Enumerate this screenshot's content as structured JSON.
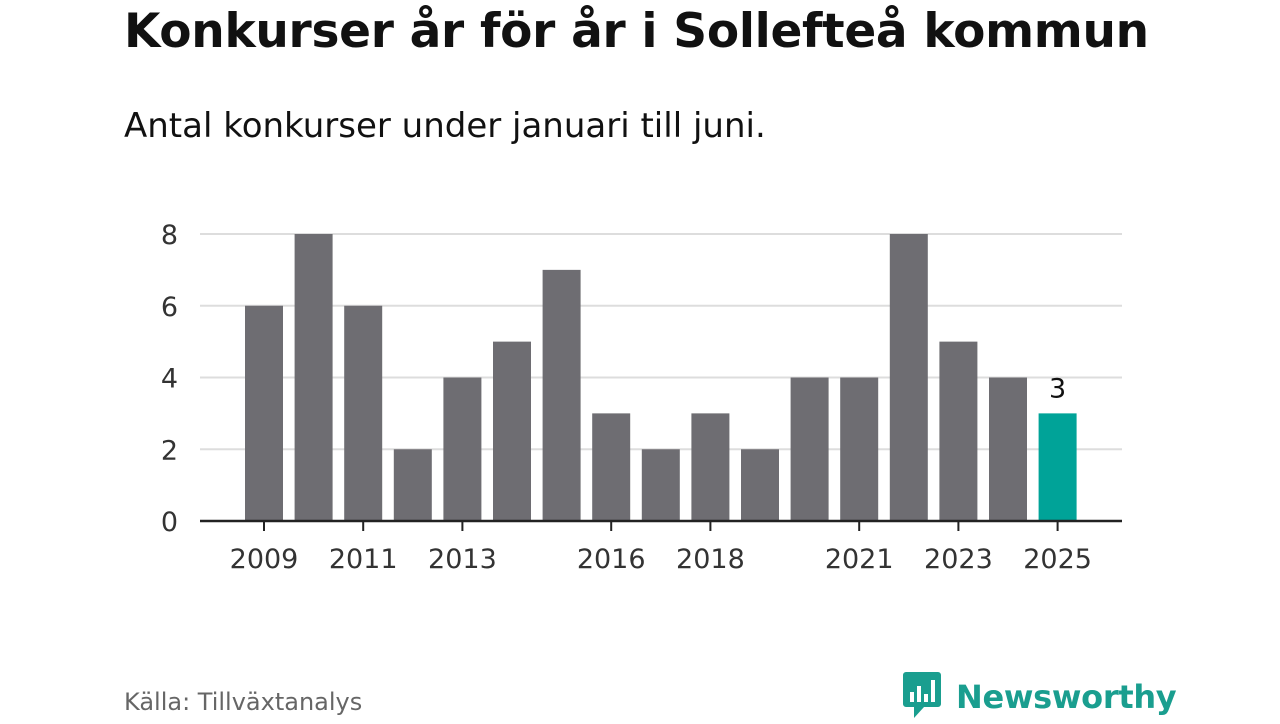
{
  "title": "Konkurser år för år i Sollefteå kommun",
  "subtitle": "Antal konkurser under januari till juni.",
  "source": "Källa: Tillväxtanalys",
  "brand": {
    "name": "Newsworthy",
    "icon": "newsworthy-logo-icon",
    "color": "#1a9e8f"
  },
  "colors": {
    "bar": "#6e6d72",
    "highlight": "#00a398",
    "grid": "#dddddd",
    "axis": "#222222"
  },
  "chart_data": {
    "type": "bar",
    "categories": [
      "2009",
      "2010",
      "2011",
      "2012",
      "2013",
      "2014",
      "2015",
      "2016",
      "2017",
      "2018",
      "2019",
      "2020",
      "2021",
      "2022",
      "2023",
      "2024",
      "2025"
    ],
    "values": [
      6,
      8,
      6,
      2,
      4,
      5,
      7,
      3,
      2,
      3,
      2,
      4,
      4,
      8,
      5,
      4,
      3
    ],
    "x_tick_labels": [
      "2009",
      "2011",
      "2013",
      "2016",
      "2018",
      "2021",
      "2023",
      "2025"
    ],
    "y_ticks": [
      0,
      2,
      4,
      6,
      8
    ],
    "ylim": [
      0,
      8
    ],
    "highlight": {
      "category": "2025",
      "label": "3"
    },
    "grid": true,
    "xlabel": "",
    "ylabel": ""
  }
}
